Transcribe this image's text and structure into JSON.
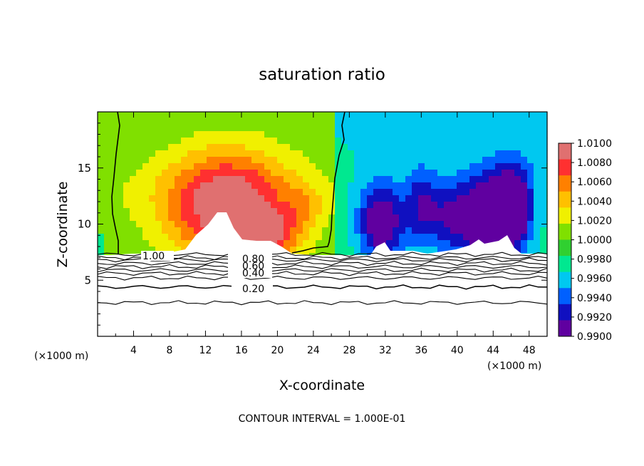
{
  "chart_data": {
    "type": "heatmap",
    "title": "saturation ratio",
    "xlabel": "X-coordinate",
    "ylabel": "Z-coordinate",
    "x_unit_left": "(×1000 m)",
    "x_unit_right": "(×1000 m)",
    "xlim": [
      0,
      50
    ],
    "ylim": [
      0,
      20
    ],
    "x_ticks": [
      4,
      8,
      12,
      16,
      20,
      24,
      28,
      32,
      36,
      40,
      44,
      48
    ],
    "y_ticks": [
      5,
      10,
      15
    ],
    "grid": false,
    "colorbar": {
      "placement": "right",
      "labels": [
        "1.0100",
        "1.0080",
        "1.0060",
        "1.0040",
        "1.0020",
        "1.0000",
        "0.9980",
        "0.9960",
        "0.9940",
        "0.9920",
        "0.9900"
      ],
      "colors": [
        "#e07070",
        "#ff3030",
        "#ff8000",
        "#ffc000",
        "#f0f000",
        "#80e000",
        "#30d030",
        "#00e890",
        "#00c8f0",
        "#0060ff",
        "#1010c0",
        "#6000a0"
      ]
    },
    "contour_labels": [
      "1.00",
      "0.80",
      "0.60",
      "0.40",
      "0.20"
    ],
    "contour_levels_z": [
      7.3,
      7.0,
      6.8,
      6.5,
      6.2,
      5.9,
      5.6,
      5.2,
      4.4,
      3.0
    ],
    "contour_interval_text": "CONTOUR INTERVAL = 1.000E-01"
  },
  "field": {
    "blobs": [
      {
        "x": 14.5,
        "z": 11.5,
        "rx": 7.0,
        "rz": 5.0,
        "v": 0.01
      },
      {
        "x": 19.5,
        "z": 9.0,
        "rx": 3.0,
        "rz": 2.0,
        "v": 0.005
      },
      {
        "x": 23.0,
        "z": 11.5,
        "rx": 2.0,
        "rz": 2.0,
        "v": 0.0025
      },
      {
        "x": 31.5,
        "z": 10.0,
        "rx": 2.5,
        "rz": 3.5,
        "v": -0.008
      },
      {
        "x": 36.0,
        "z": 11.5,
        "rx": 2.0,
        "rz": 3.5,
        "v": -0.005
      },
      {
        "x": 39.5,
        "z": 10.5,
        "rx": 2.5,
        "rz": 3.5,
        "v": -0.0055
      },
      {
        "x": 43.5,
        "z": 10.5,
        "rx": 2.5,
        "rz": 4.0,
        "v": -0.01
      },
      {
        "x": 46.5,
        "z": 11.5,
        "rx": 2.0,
        "rz": 4.0,
        "v": -0.008
      }
    ],
    "boundary_x": 26.5
  }
}
